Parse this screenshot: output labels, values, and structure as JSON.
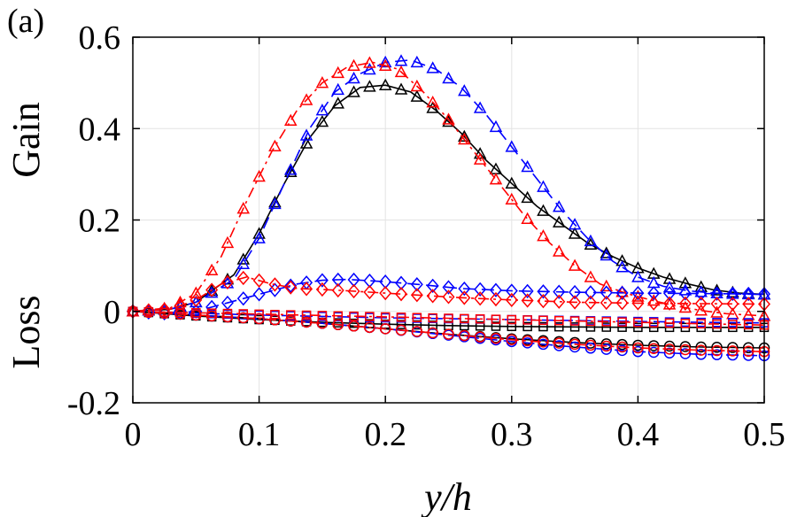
{
  "panel_label": "(a)",
  "chart_data": {
    "type": "line",
    "title": "",
    "xlabel": "y/h",
    "ylabel_top": "Gain",
    "ylabel_bottom": "Loss",
    "xlim": [
      0,
      0.5
    ],
    "ylim": [
      -0.2,
      0.6
    ],
    "xticks": [
      0,
      0.1,
      0.2,
      0.3,
      0.4,
      0.5
    ],
    "xtick_labels": [
      "0",
      "0.1",
      "0.2",
      "0.3",
      "0.4",
      "0.5"
    ],
    "yticks": [
      -0.2,
      0,
      0.2,
      0.4,
      0.6
    ],
    "ytick_labels": [
      "-0.2",
      "0",
      "0.2",
      "0.4",
      "0.6"
    ],
    "grid": true,
    "colors": {
      "black": "#000000",
      "blue": "#0000ff",
      "red": "#ff0000"
    },
    "series": [
      {
        "color": "#000000",
        "marker": "triangle",
        "dash": "solid",
        "points": [
          [
            0,
            0
          ],
          [
            0.03,
            0.005
          ],
          [
            0.05,
            0.02
          ],
          [
            0.08,
            0.08
          ],
          [
            0.1,
            0.17
          ],
          [
            0.12,
            0.28
          ],
          [
            0.14,
            0.38
          ],
          [
            0.16,
            0.45
          ],
          [
            0.18,
            0.49
          ],
          [
            0.2,
            0.495
          ],
          [
            0.22,
            0.48
          ],
          [
            0.24,
            0.44
          ],
          [
            0.26,
            0.39
          ],
          [
            0.28,
            0.33
          ],
          [
            0.3,
            0.28
          ],
          [
            0.32,
            0.23
          ],
          [
            0.34,
            0.19
          ],
          [
            0.36,
            0.15
          ],
          [
            0.38,
            0.12
          ],
          [
            0.4,
            0.095
          ],
          [
            0.42,
            0.075
          ],
          [
            0.44,
            0.06
          ],
          [
            0.46,
            0.047
          ],
          [
            0.48,
            0.04
          ],
          [
            0.5,
            0.037
          ]
        ]
      },
      {
        "color": "#0000ff",
        "marker": "triangle",
        "dash": "dash",
        "points": [
          [
            0,
            0
          ],
          [
            0.03,
            0.005
          ],
          [
            0.05,
            0.02
          ],
          [
            0.08,
            0.07
          ],
          [
            0.1,
            0.16
          ],
          [
            0.12,
            0.28
          ],
          [
            0.14,
            0.4
          ],
          [
            0.16,
            0.48
          ],
          [
            0.18,
            0.52
          ],
          [
            0.2,
            0.545
          ],
          [
            0.22,
            0.55
          ],
          [
            0.24,
            0.53
          ],
          [
            0.26,
            0.49
          ],
          [
            0.28,
            0.43
          ],
          [
            0.3,
            0.36
          ],
          [
            0.32,
            0.29
          ],
          [
            0.34,
            0.22
          ],
          [
            0.36,
            0.16
          ],
          [
            0.38,
            0.11
          ],
          [
            0.4,
            0.075
          ],
          [
            0.42,
            0.055
          ],
          [
            0.44,
            0.045
          ],
          [
            0.46,
            0.04
          ],
          [
            0.48,
            0.038
          ],
          [
            0.5,
            0.037
          ]
        ]
      },
      {
        "color": "#ff0000",
        "marker": "triangle",
        "dash": "dashdot",
        "points": [
          [
            0,
            0
          ],
          [
            0.03,
            0.008
          ],
          [
            0.05,
            0.04
          ],
          [
            0.07,
            0.12
          ],
          [
            0.09,
            0.24
          ],
          [
            0.11,
            0.35
          ],
          [
            0.13,
            0.44
          ],
          [
            0.15,
            0.5
          ],
          [
            0.17,
            0.535
          ],
          [
            0.19,
            0.545
          ],
          [
            0.21,
            0.53
          ],
          [
            0.23,
            0.48
          ],
          [
            0.25,
            0.42
          ],
          [
            0.27,
            0.35
          ],
          [
            0.29,
            0.28
          ],
          [
            0.31,
            0.21
          ],
          [
            0.33,
            0.15
          ],
          [
            0.35,
            0.1
          ],
          [
            0.37,
            0.06
          ],
          [
            0.39,
            0.04
          ],
          [
            0.41,
            0.025
          ],
          [
            0.43,
            0.012
          ],
          [
            0.45,
            0.002
          ],
          [
            0.47,
            -0.005
          ],
          [
            0.5,
            -0.01
          ]
        ]
      },
      {
        "color": "#0000ff",
        "marker": "diamond",
        "dash": "dash",
        "points": [
          [
            0,
            0
          ],
          [
            0.03,
            -0.005
          ],
          [
            0.05,
            0.0
          ],
          [
            0.07,
            0.015
          ],
          [
            0.09,
            0.03
          ],
          [
            0.11,
            0.045
          ],
          [
            0.13,
            0.06
          ],
          [
            0.15,
            0.068
          ],
          [
            0.17,
            0.07
          ],
          [
            0.2,
            0.065
          ],
          [
            0.23,
            0.058
          ],
          [
            0.26,
            0.05
          ],
          [
            0.3,
            0.045
          ],
          [
            0.35,
            0.042
          ],
          [
            0.4,
            0.04
          ],
          [
            0.45,
            0.039
          ],
          [
            0.5,
            0.038
          ]
        ]
      },
      {
        "color": "#ff0000",
        "marker": "diamond",
        "dash": "dashdot",
        "points": [
          [
            0,
            0
          ],
          [
            0.03,
            0.005
          ],
          [
            0.05,
            0.025
          ],
          [
            0.07,
            0.06
          ],
          [
            0.09,
            0.075
          ],
          [
            0.11,
            0.06
          ],
          [
            0.13,
            0.05
          ],
          [
            0.15,
            0.048
          ],
          [
            0.17,
            0.045
          ],
          [
            0.2,
            0.04
          ],
          [
            0.23,
            0.035
          ],
          [
            0.26,
            0.03
          ],
          [
            0.3,
            0.025
          ],
          [
            0.35,
            0.02
          ],
          [
            0.4,
            0.018
          ],
          [
            0.45,
            0.017
          ],
          [
            0.5,
            0.016
          ]
        ]
      },
      {
        "color": "#000000",
        "marker": "square",
        "dash": "solid",
        "points": [
          [
            0,
            0
          ],
          [
            0.05,
            -0.01
          ],
          [
            0.1,
            -0.018
          ],
          [
            0.15,
            -0.024
          ],
          [
            0.2,
            -0.028
          ],
          [
            0.25,
            -0.031
          ],
          [
            0.3,
            -0.033
          ],
          [
            0.35,
            -0.034
          ],
          [
            0.4,
            -0.035
          ],
          [
            0.45,
            -0.035
          ],
          [
            0.5,
            -0.035
          ]
        ]
      },
      {
        "color": "#0000ff",
        "marker": "square",
        "dash": "dash",
        "points": [
          [
            0,
            0
          ],
          [
            0.05,
            -0.004
          ],
          [
            0.1,
            -0.008
          ],
          [
            0.15,
            -0.011
          ],
          [
            0.2,
            -0.014
          ],
          [
            0.25,
            -0.016
          ],
          [
            0.3,
            -0.018
          ],
          [
            0.35,
            -0.02
          ],
          [
            0.4,
            -0.022
          ],
          [
            0.45,
            -0.024
          ],
          [
            0.5,
            -0.025
          ]
        ]
      },
      {
        "color": "#ff0000",
        "marker": "square",
        "dash": "dashdot",
        "points": [
          [
            0,
            0
          ],
          [
            0.05,
            -0.003
          ],
          [
            0.1,
            -0.006
          ],
          [
            0.15,
            -0.009
          ],
          [
            0.2,
            -0.012
          ],
          [
            0.25,
            -0.015
          ],
          [
            0.3,
            -0.018
          ],
          [
            0.35,
            -0.021
          ],
          [
            0.4,
            -0.024
          ],
          [
            0.45,
            -0.027
          ],
          [
            0.5,
            -0.03
          ]
        ]
      },
      {
        "color": "#000000",
        "marker": "circle",
        "dash": "solid",
        "points": [
          [
            0,
            0
          ],
          [
            0.05,
            -0.008
          ],
          [
            0.1,
            -0.016
          ],
          [
            0.15,
            -0.026
          ],
          [
            0.2,
            -0.038
          ],
          [
            0.25,
            -0.05
          ],
          [
            0.3,
            -0.06
          ],
          [
            0.35,
            -0.068
          ],
          [
            0.4,
            -0.074
          ],
          [
            0.45,
            -0.078
          ],
          [
            0.5,
            -0.08
          ]
        ]
      },
      {
        "color": "#0000ff",
        "marker": "circle",
        "dash": "dash",
        "points": [
          [
            0,
            0
          ],
          [
            0.05,
            -0.008
          ],
          [
            0.1,
            -0.016
          ],
          [
            0.15,
            -0.026
          ],
          [
            0.2,
            -0.038
          ],
          [
            0.25,
            -0.052
          ],
          [
            0.3,
            -0.066
          ],
          [
            0.35,
            -0.078
          ],
          [
            0.4,
            -0.088
          ],
          [
            0.45,
            -0.094
          ],
          [
            0.5,
            -0.097
          ]
        ]
      },
      {
        "color": "#ff0000",
        "marker": "circle",
        "dash": "dashdot",
        "points": [
          [
            0,
            0
          ],
          [
            0.05,
            -0.008
          ],
          [
            0.1,
            -0.016
          ],
          [
            0.15,
            -0.026
          ],
          [
            0.2,
            -0.038
          ],
          [
            0.25,
            -0.05
          ],
          [
            0.3,
            -0.062
          ],
          [
            0.35,
            -0.072
          ],
          [
            0.4,
            -0.08
          ],
          [
            0.45,
            -0.085
          ],
          [
            0.5,
            -0.088
          ]
        ]
      }
    ]
  }
}
